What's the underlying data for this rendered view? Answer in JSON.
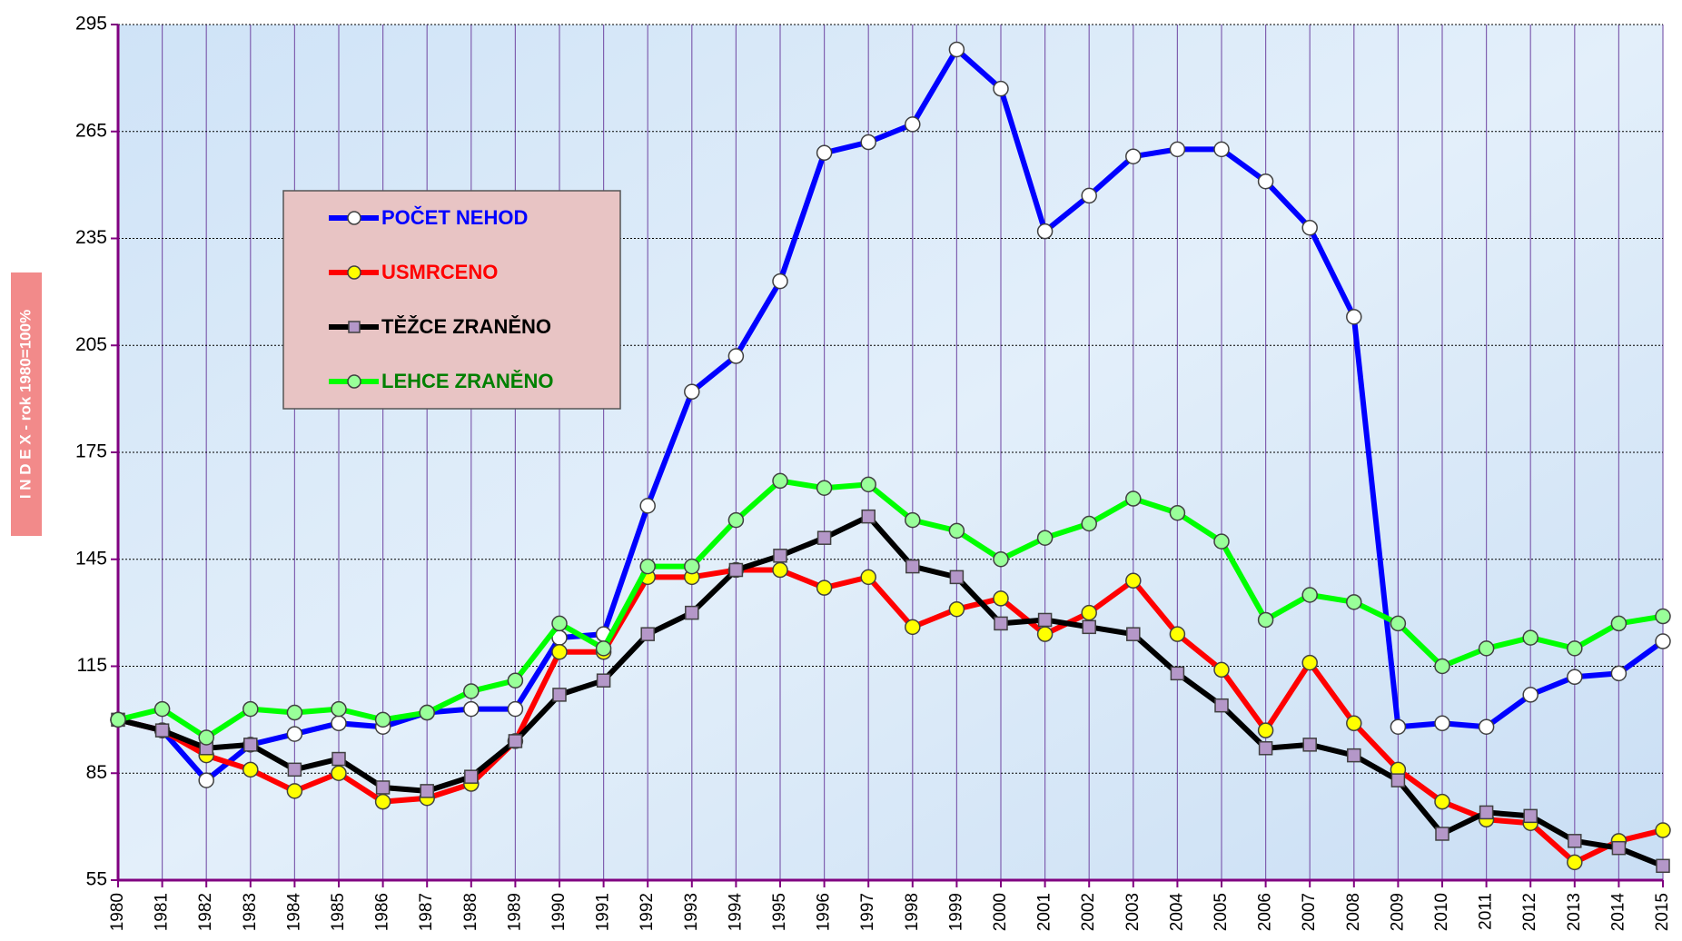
{
  "chart_data": {
    "type": "line",
    "y_label": "I N D E X - rok 1980=100%",
    "x": [
      1980,
      1981,
      1982,
      1983,
      1984,
      1985,
      1986,
      1987,
      1988,
      1989,
      1990,
      1991,
      1992,
      1993,
      1994,
      1995,
      1996,
      1997,
      1998,
      1999,
      2000,
      2001,
      2002,
      2003,
      2004,
      2005,
      2006,
      2007,
      2008,
      2009,
      2010,
      2011,
      2012,
      2013,
      2014,
      2015
    ],
    "xlim": [
      1980,
      2015
    ],
    "xticks": [
      1980,
      1981,
      1982,
      1983,
      1984,
      1985,
      1986,
      1987,
      1988,
      1989,
      1990,
      1991,
      1992,
      1993,
      1994,
      1995,
      1996,
      1997,
      1998,
      1999,
      2000,
      2001,
      2002,
      2003,
      2004,
      2005,
      2006,
      2007,
      2008,
      2009,
      2010,
      2011,
      2012,
      2013,
      2014,
      2015
    ],
    "ylim": [
      55,
      295
    ],
    "yticks": [
      55,
      85,
      115,
      145,
      175,
      205,
      235,
      265,
      295
    ],
    "grid": true,
    "legend": "upper left",
    "series": [
      {
        "name": "POČET NEHOD",
        "color": "#0000ff",
        "marker_fill": "#ffffff",
        "marker": "circle",
        "values": [
          100,
          97,
          83,
          93,
          96,
          99,
          98,
          102,
          103,
          103,
          123,
          124,
          160,
          192,
          202,
          223,
          259,
          262,
          267,
          288,
          277,
          237,
          247,
          258,
          260,
          260,
          251,
          238,
          213,
          98,
          99,
          98,
          107,
          112,
          113,
          122
        ]
      },
      {
        "name": "USMRCENO",
        "color": "#ff0000",
        "marker_fill": "#ffff00",
        "marker": "circle",
        "values": [
          100,
          97,
          90,
          86,
          80,
          85,
          77,
          78,
          82,
          94,
          119,
          119,
          140,
          140,
          142,
          142,
          137,
          140,
          126,
          131,
          134,
          124,
          130,
          139,
          124,
          114,
          97,
          116,
          99,
          86,
          77,
          72,
          71,
          60,
          66,
          69
        ]
      },
      {
        "name": "TĚŽCE ZRANĚNO",
        "color": "#000000",
        "marker_fill": "#b497c8",
        "marker": "square",
        "values": [
          100,
          97,
          92,
          93,
          86,
          89,
          81,
          80,
          84,
          94,
          107,
          111,
          124,
          130,
          142,
          146,
          151,
          157,
          143,
          140,
          127,
          128,
          126,
          124,
          113,
          104,
          92,
          93,
          90,
          83,
          68,
          74,
          73,
          66,
          64,
          59
        ]
      },
      {
        "name": "LEHCE ZRANĚNO",
        "color": "#00ff00",
        "marker_fill": "#99ff99",
        "marker": "circle",
        "text_color": "#008000",
        "values": [
          100,
          103,
          95,
          103,
          102,
          103,
          100,
          102,
          108,
          111,
          127,
          120,
          143,
          143,
          156,
          167,
          165,
          166,
          156,
          153,
          145,
          151,
          155,
          162,
          158,
          150,
          128,
          135,
          133,
          127,
          115,
          120,
          123,
          120,
          127,
          129
        ]
      }
    ]
  }
}
